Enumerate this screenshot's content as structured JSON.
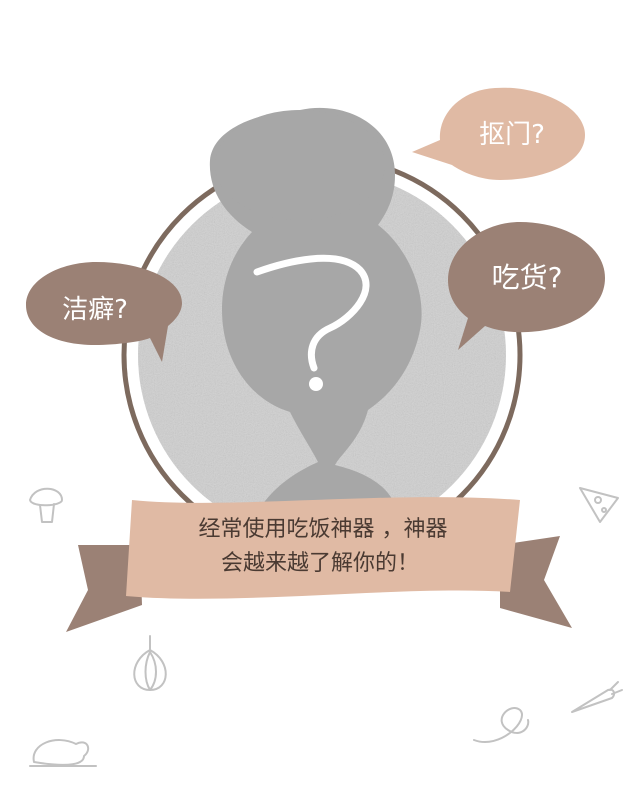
{
  "bubbles": {
    "left": {
      "text": "洁癖?",
      "color": "#9b8175"
    },
    "top_right": {
      "text": "抠门?",
      "color": "#e0baa4"
    },
    "right": {
      "text": "吃货?",
      "color": "#9b8175"
    }
  },
  "banner": {
    "line1": "经常使用吃饭神器 ，神器",
    "line2": "会越来越了解你的！",
    "ribbon_color": "#e0baa4",
    "tail_color": "#9b8175"
  },
  "center_mark": {
    "glyph": "?"
  },
  "colors": {
    "ring": "#7d6a5e",
    "disc": "#d0d0d0",
    "silhouette": "#a7a7a7",
    "doodle": "#bdbdbd",
    "text": "#4a3a32"
  },
  "doodles": [
    "mushroom-icon",
    "pizza-slice-icon",
    "garlic-icon",
    "carrot-icon",
    "roast-chicken-icon",
    "noodle-swirl-icon"
  ]
}
